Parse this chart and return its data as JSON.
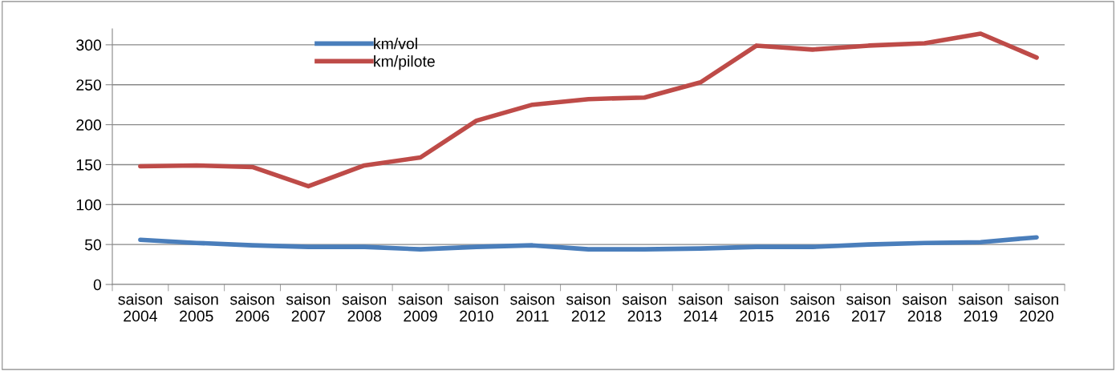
{
  "chart_data": {
    "type": "line",
    "categories": [
      "saison\n2004",
      "saison\n2005",
      "saison\n2006",
      "saison\n2007",
      "saison\n2008",
      "saison\n2009",
      "saison\n2010",
      "saison\n2011",
      "saison\n2012",
      "saison\n2013",
      "saison\n2014",
      "saison\n2015",
      "saison\n2016",
      "saison\n2017",
      "saison\n2018",
      "saison\n2019",
      "saison\n2020"
    ],
    "series": [
      {
        "name": "km/vol",
        "color": "#4a7ebb",
        "values": [
          56,
          52,
          49,
          47,
          47,
          44,
          47,
          49,
          44,
          44,
          45,
          47,
          47,
          50,
          52,
          53,
          59
        ]
      },
      {
        "name": "km/pilote",
        "color": "#be4b48",
        "values": [
          148,
          149,
          147,
          123,
          149,
          159,
          205,
          225,
          232,
          234,
          253,
          299,
          294,
          299,
          302,
          314,
          284
        ]
      }
    ],
    "ylim": [
      0,
      320
    ],
    "yticks": [
      0,
      50,
      100,
      150,
      200,
      250,
      300
    ],
    "grid": "y",
    "legend": "top left",
    "marker": "none",
    "line_style": "solid"
  }
}
